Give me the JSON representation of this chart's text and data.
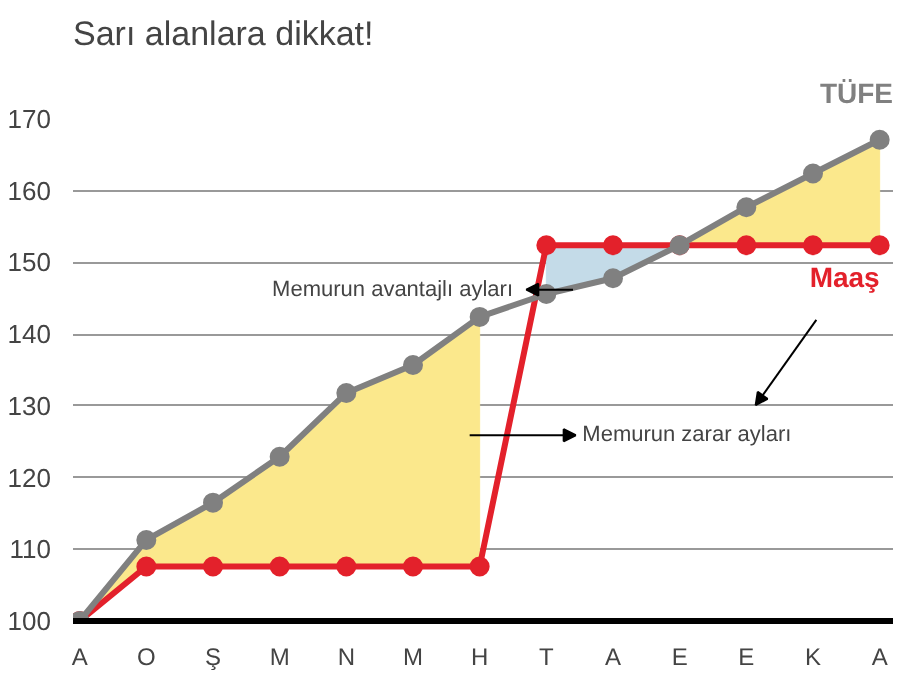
{
  "chart_data": {
    "type": "line",
    "title": "Sarı alanlara dikkat!",
    "categories": [
      "A",
      "O",
      "Ş",
      "M",
      "N",
      "M",
      "H",
      "T",
      "A",
      "E",
      "E",
      "K",
      "A"
    ],
    "series": [
      {
        "name": "TÜFE",
        "color": "#808080",
        "values": [
          100,
          111.3,
          116.5,
          122.9,
          131.8,
          135.7,
          142.4,
          145.6,
          147.8,
          152.4,
          157.7,
          162.4,
          167.1
        ],
        "lower": [
          100,
          107.6,
          107.6,
          107.6,
          107.6,
          107.6,
          107.6,
          null,
          null,
          152.4,
          152.4,
          152.4,
          152.4
        ],
        "upper": [
          100,
          111.3,
          116.5,
          122.9,
          131.8,
          135.7,
          142.4,
          null,
          null,
          152.4,
          157.7,
          162.4,
          167.1
        ]
      },
      {
        "name": "Maaş",
        "color": "#e3212b",
        "values": [
          100,
          107.6,
          107.6,
          107.6,
          107.6,
          107.6,
          107.6,
          152.4,
          152.4,
          152.4,
          152.4,
          152.4,
          152.4
        ],
        "lower": [
          null,
          null,
          null,
          null,
          null,
          null,
          null,
          145.6,
          147.8,
          152.4,
          null,
          null,
          null
        ],
        "upper": [
          null,
          null,
          null,
          null,
          null,
          null,
          null,
          152.4,
          152.4,
          152.4,
          null,
          null,
          null
        ]
      }
    ],
    "ylim": [
      100,
      170
    ],
    "yticks": [
      100,
      110,
      120,
      130,
      140,
      150,
      160,
      170
    ],
    "grid": "y",
    "marker": "circle",
    "line_style": "solid",
    "annotations": [
      "Memurun avantajlı ayları",
      "Memurun zarar ayları"
    ]
  }
}
